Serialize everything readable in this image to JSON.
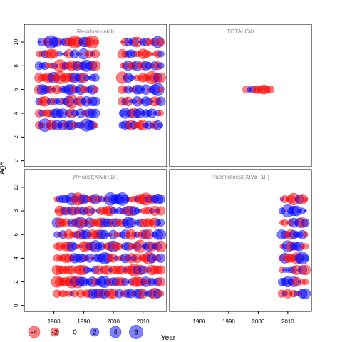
{
  "chart_data": {
    "type": "scatter",
    "subtype": "bubble residual plot",
    "xlabel": "Year",
    "ylabel": "Age",
    "xlim": [
      1970,
      2018
    ],
    "ylim": [
      -0.5,
      11.5
    ],
    "xticks": [
      1980,
      1990,
      2000,
      2010
    ],
    "yticks": [
      0,
      2,
      4,
      6,
      8,
      10
    ],
    "grid": false,
    "colors": {
      "positive": "#0000FF",
      "negative": "#FF0000",
      "opacity": 0.5
    },
    "legend": {
      "placement": "bottom-left",
      "values": [
        -4,
        -2,
        0,
        2,
        4,
        6
      ],
      "labels": [
        "-4",
        "-2",
        "0",
        "2",
        "4",
        "6"
      ]
    },
    "panels": [
      {
        "title": "Residual catch",
        "years": [
          1975,
          2016
        ],
        "gap": [
          1995,
          2002
        ],
        "ages": [
          3,
          4,
          5,
          6,
          7,
          8,
          9,
          10
        ],
        "seed": 11
      },
      {
        "title": "TOTALCW",
        "years": [
          1996,
          2004
        ],
        "gap": null,
        "ages": [
          6
        ],
        "seed": 23
      },
      {
        "title": "WHoest(XIVb+1F)",
        "years": [
          1981,
          2016
        ],
        "gap": null,
        "ages": [
          1,
          2,
          3,
          4,
          5,
          6,
          7,
          8,
          9
        ],
        "seed": 37
      },
      {
        "title": "Paamiutoest(XIVb+1F)",
        "years": [
          2008,
          2016
        ],
        "gap": null,
        "ages": [
          1,
          2,
          3,
          4,
          5,
          6,
          7,
          8,
          9
        ],
        "seed": 51
      }
    ]
  }
}
